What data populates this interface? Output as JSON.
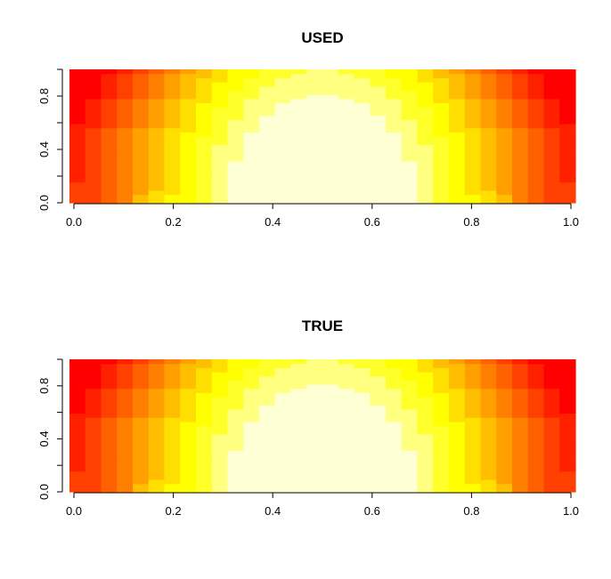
{
  "chart_data": [
    {
      "type": "heatmap",
      "title": "USED",
      "xlim": [
        0,
        1
      ],
      "ylim": [
        0,
        1
      ],
      "x_ticks": [
        "0.0",
        "0.2",
        "0.4",
        "0.6",
        "0.8",
        "1.0"
      ],
      "y_ticks": [
        "0.0",
        "0.4",
        "0.8"
      ],
      "grid": false,
      "color_scale": [
        "#FF0000",
        "#FF2000",
        "#FF4000",
        "#FF6000",
        "#FF8000",
        "#FF9F00",
        "#FFBF00",
        "#FFDF00",
        "#FFFF00",
        "#FFFF2A",
        "#FFFF80",
        "#FFFFD5"
      ],
      "n_x_cells": 32,
      "n_y_cells": 32,
      "levels": 12
    },
    {
      "type": "heatmap",
      "title": "TRUE",
      "xlim": [
        0,
        1
      ],
      "ylim": [
        0,
        1
      ],
      "x_ticks": [
        "0.0",
        "0.2",
        "0.4",
        "0.6",
        "0.8",
        "1.0"
      ],
      "y_ticks": [
        "0.0",
        "0.4",
        "0.8"
      ],
      "grid": false,
      "color_scale": [
        "#FF0000",
        "#FF2000",
        "#FF4000",
        "#FF6000",
        "#FF8000",
        "#FF9F00",
        "#FFBF00",
        "#FFDF00",
        "#FFFF00",
        "#FFFF2A",
        "#FFFF80",
        "#FFFFD5"
      ],
      "n_x_cells": 32,
      "n_y_cells": 32,
      "levels": 12
    }
  ]
}
